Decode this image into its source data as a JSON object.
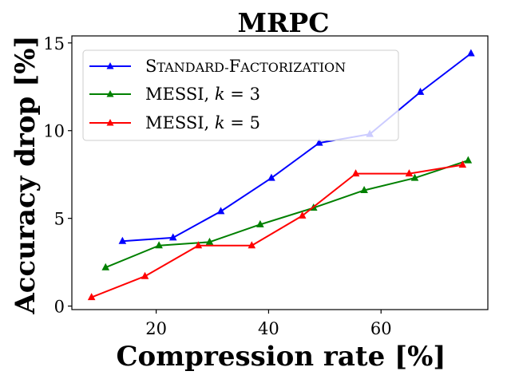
{
  "chart_data": {
    "type": "line",
    "title": "MRPC",
    "xlabel": "Compression rate [%]",
    "ylabel": "Accuracy drop [%]",
    "xlim": [
      5,
      79
    ],
    "ylim": [
      -0.2,
      15.4
    ],
    "xticks": [
      20,
      40,
      60
    ],
    "yticks": [
      0,
      5,
      10,
      15
    ],
    "grid": false,
    "legend_position": "upper-left",
    "series": [
      {
        "name": "Standard-Factorization",
        "color": "#0000ff",
        "marker": "triangle",
        "x": [
          14,
          23,
          31.5,
          40.5,
          49,
          58,
          67,
          76
        ],
        "y": [
          3.7,
          3.9,
          5.4,
          7.3,
          9.3,
          9.8,
          12.2,
          14.4
        ]
      },
      {
        "name": "MESSI, k = 3",
        "color": "#008000",
        "marker": "triangle",
        "x": [
          11,
          20.5,
          29.5,
          38.5,
          48,
          57,
          66,
          75.5
        ],
        "y": [
          2.2,
          3.45,
          3.65,
          4.65,
          5.6,
          6.6,
          7.3,
          8.3
        ]
      },
      {
        "name": "MESSI, k = 5",
        "color": "#ff0000",
        "marker": "triangle",
        "x": [
          8.5,
          18,
          27.5,
          37,
          46,
          55.5,
          65,
          74.5
        ],
        "y": [
          0.5,
          1.7,
          3.45,
          3.45,
          5.15,
          7.55,
          7.55,
          8.05
        ]
      }
    ]
  },
  "legend": {
    "sf_first": "S",
    "sf_part1": "TANDARD-",
    "sf_second": "F",
    "sf_part2": "ACTORIZATION",
    "messi_label": "MESSI, ",
    "k_symbol": "k",
    "k3_value": " = 3",
    "k5_value": " = 5"
  }
}
